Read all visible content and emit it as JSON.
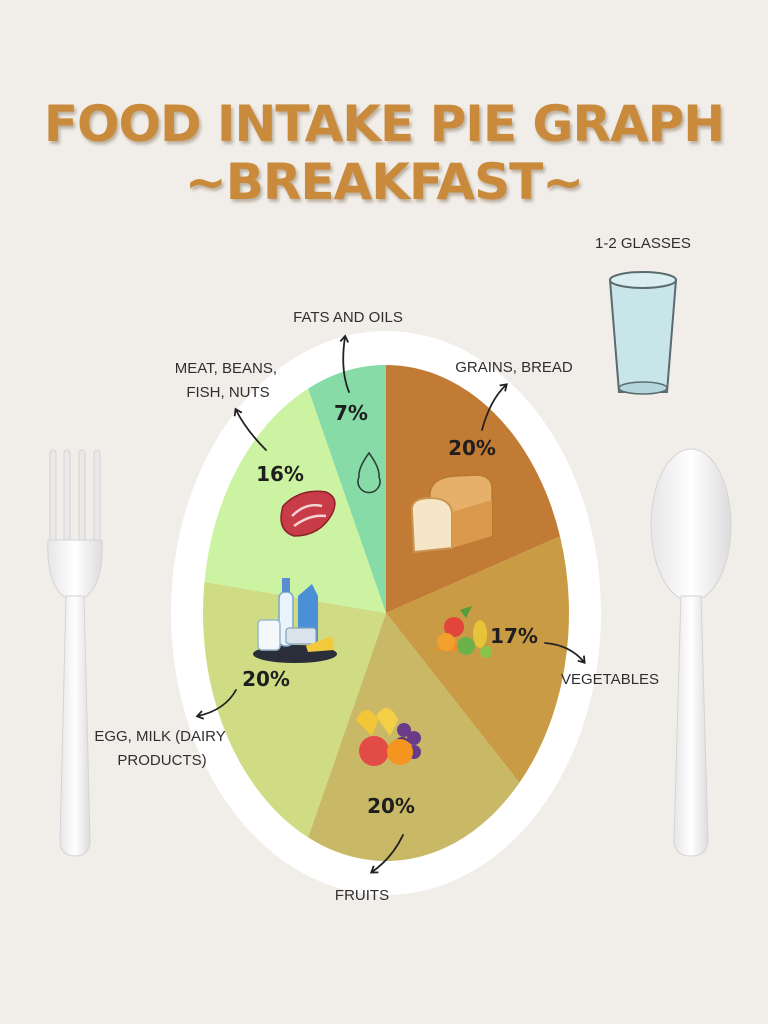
{
  "header": {
    "title_line1": "FOOD INTAKE PIE GRAPH",
    "title_line2": "~BREAKFAST~"
  },
  "water": {
    "label": "1-2 GLASSES",
    "icon": "water-glass-icon"
  },
  "chart_data": {
    "type": "pie",
    "slices": [
      {
        "category": "GRAINS, BREAD",
        "value": 20,
        "value_label": "20%",
        "color": "#c27b34",
        "icon": "bread-icon"
      },
      {
        "category": "VEGETABLES",
        "value": 17,
        "value_label": "17%",
        "color": "#c99b45",
        "icon": "vegetables-icon"
      },
      {
        "category": "FRUITS",
        "value": 20,
        "value_label": "20%",
        "color": "#c9b866",
        "icon": "fruits-icon"
      },
      {
        "category": "EGG, MILK (DAIRY PRODUCTS)",
        "value": 20,
        "value_label": "20%",
        "color": "#cfdc84",
        "icon": "dairy-icon"
      },
      {
        "category": "MEAT, BEANS, FISH, NUTS",
        "value": 16,
        "value_label": "16%",
        "color": "#ccf3a2",
        "icon": "steak-icon"
      },
      {
        "category": "FATS AND OILS",
        "value": 7,
        "value_label": "7%",
        "color": "#86dba6",
        "icon": "fat-drop-icon"
      }
    ],
    "start_angle_deg": 0,
    "direction": "clockwise"
  }
}
